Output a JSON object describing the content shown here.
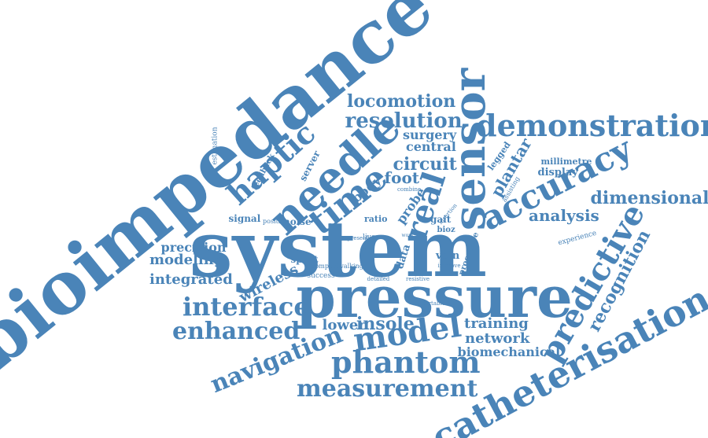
{
  "colors": {
    "word": "#4a84b8",
    "background": "#ffffff"
  },
  "cloud": {
    "words": [
      {
        "id": "bioimpedance",
        "text": "bioimpedance"
      },
      {
        "id": "system",
        "text": "system"
      },
      {
        "id": "pressure",
        "text": "pressure"
      },
      {
        "id": "sensor",
        "text": "sensor"
      },
      {
        "id": "needle",
        "text": "needle"
      },
      {
        "id": "catheterisation",
        "text": "catheterisation"
      },
      {
        "id": "demonstration",
        "text": "demonstration"
      },
      {
        "id": "accuracy",
        "text": "accuracy"
      },
      {
        "id": "time",
        "text": "time"
      },
      {
        "id": "real",
        "text": "real"
      },
      {
        "id": "haptic",
        "text": "haptic"
      },
      {
        "id": "model",
        "text": "model"
      },
      {
        "id": "phantom",
        "text": "phantom"
      },
      {
        "id": "predictive",
        "text": "predictive"
      },
      {
        "id": "measurement",
        "text": "measurement"
      },
      {
        "id": "navigation",
        "text": "navigation"
      },
      {
        "id": "interface",
        "text": "interface"
      },
      {
        "id": "enhanced",
        "text": "enhanced"
      },
      {
        "id": "resolution",
        "text": "resolution"
      },
      {
        "id": "locomotion",
        "text": "locomotion"
      },
      {
        "id": "circuit",
        "text": "circuit"
      },
      {
        "id": "foot",
        "text": "foot"
      },
      {
        "id": "dimensional",
        "text": "dimensional"
      },
      {
        "id": "recognition",
        "text": "recognition"
      },
      {
        "id": "analysis",
        "text": "analysis"
      },
      {
        "id": "integrated",
        "text": "integrated"
      },
      {
        "id": "modeling",
        "text": "modeling"
      },
      {
        "id": "precision",
        "text": "precision"
      },
      {
        "id": "wireless",
        "text": "wireless"
      },
      {
        "id": "lower",
        "text": "lower"
      },
      {
        "id": "insole",
        "text": "insole"
      },
      {
        "id": "training",
        "text": "training"
      },
      {
        "id": "network",
        "text": "network"
      },
      {
        "id": "biomechanical",
        "text": "biomechanical"
      },
      {
        "id": "central",
        "text": "central"
      },
      {
        "id": "surgery",
        "text": "surgery"
      },
      {
        "id": "plantar",
        "text": "plantar"
      },
      {
        "id": "body",
        "text": "body"
      },
      {
        "id": "probe",
        "text": "probe"
      },
      {
        "id": "server",
        "text": "server"
      },
      {
        "id": "signal",
        "text": "signal"
      },
      {
        "id": "noise",
        "text": "noise"
      },
      {
        "id": "sport",
        "text": "sport"
      },
      {
        "id": "millimetre",
        "text": "millimetre"
      },
      {
        "id": "display",
        "text": "display"
      },
      {
        "id": "legged",
        "text": "legged"
      },
      {
        "id": "feedback",
        "text": "feedback"
      },
      {
        "id": "estimation",
        "text": "estimation"
      },
      {
        "id": "vein",
        "text": "vein"
      },
      {
        "id": "gait",
        "text": "gait"
      },
      {
        "id": "bioz",
        "text": "bioz"
      },
      {
        "id": "data",
        "text": "data"
      },
      {
        "id": "experience",
        "text": "experience"
      },
      {
        "id": "procedure",
        "text": "procedure"
      },
      {
        "id": "ratio",
        "text": "ratio"
      },
      {
        "id": "success",
        "text": "success"
      },
      {
        "id": "compact",
        "text": "compact"
      },
      {
        "id": "walking",
        "text": "walking"
      },
      {
        "id": "detailed",
        "text": "detailed"
      },
      {
        "id": "resistive",
        "text": "resistive"
      },
      {
        "id": "portable",
        "text": "portable"
      },
      {
        "id": "position",
        "text": "position"
      },
      {
        "id": "combine",
        "text": "combine"
      },
      {
        "id": "insertion",
        "text": "insertion"
      },
      {
        "id": "assisting",
        "text": "assisting"
      },
      {
        "id": "improve",
        "text": "improve"
      },
      {
        "id": "joint",
        "text": "joint"
      },
      {
        "id": "live",
        "text": "live"
      },
      {
        "id": "present",
        "text": "present"
      },
      {
        "id": "work",
        "text": "work"
      }
    ]
  }
}
